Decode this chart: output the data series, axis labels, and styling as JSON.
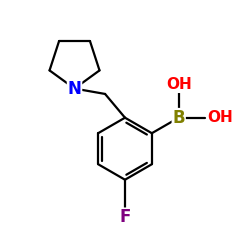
{
  "background_color": "#ffffff",
  "atom_colors": {
    "B": "#808000",
    "N": "#0000ff",
    "O": "#ff0000",
    "F": "#7f007f",
    "C": "#000000"
  },
  "font_size_atom": 11,
  "line_width": 1.6,
  "figsize": [
    2.5,
    2.5
  ],
  "dpi": 100,
  "xlim": [
    -2.5,
    3.5
  ],
  "ylim": [
    -3.2,
    3.5
  ]
}
